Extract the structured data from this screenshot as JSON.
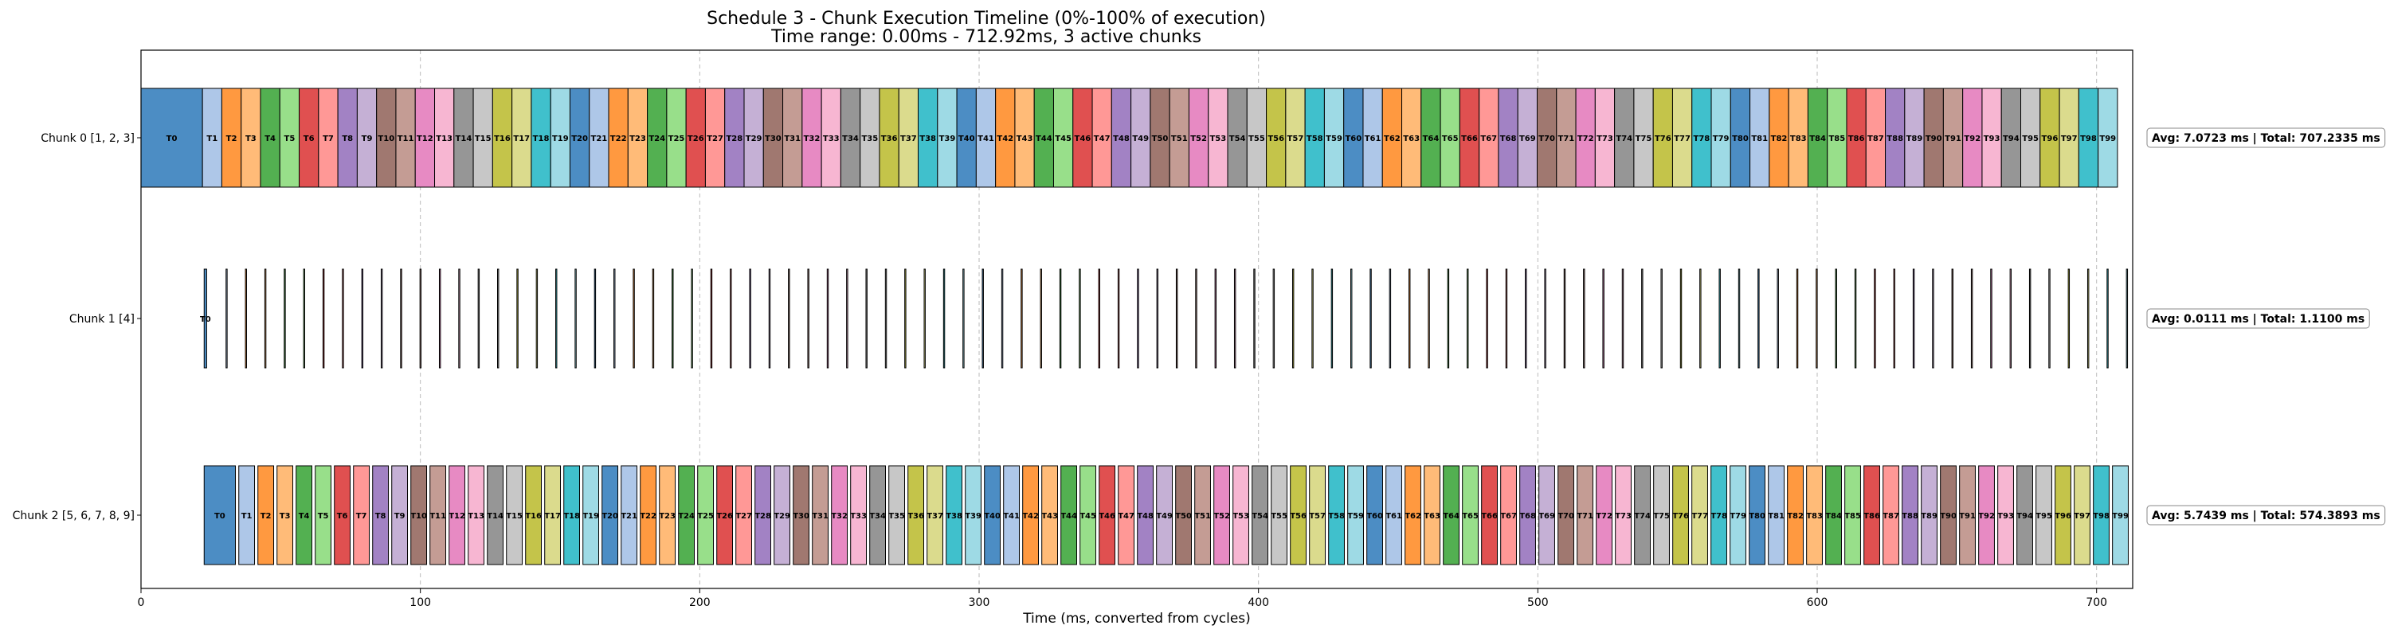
{
  "chart_data": {
    "type": "gantt",
    "title": "Schedule 3 - Chunk Execution Timeline (0%-100% of execution)",
    "subtitle": "Time range: 0.00ms - 712.92ms, 3 active chunks",
    "xlabel": "Time (ms, converted from cycles)",
    "ylabel": "",
    "xlim": [
      0,
      712.92
    ],
    "xticks": [
      0,
      100,
      200,
      300,
      400,
      500,
      600,
      700
    ],
    "grid": "x-dashed",
    "palette": [
      "#4c8dc4",
      "#aec7e8",
      "#ff9940",
      "#ffbb78",
      "#53b051",
      "#98df8a",
      "#e05050",
      "#ff9896",
      "#a282c4",
      "#c5b0d5",
      "#a07870",
      "#c49c94",
      "#e78ac3",
      "#f7b6d2",
      "#969696",
      "#c7c7c7",
      "#c4c44a",
      "#dbdb8d",
      "#40c0cc",
      "#9edae5"
    ],
    "chunks": [
      {
        "label": "Chunk 0 [1, 2, 3]",
        "start": 0.0,
        "first_duration": 22.0,
        "task_duration": 6.924,
        "task_gap": 0.0,
        "task_count": 100,
        "summary": "Avg: 7.0723 ms | Total: 707.2335 ms"
      },
      {
        "label": "Chunk 1 [4]",
        "start": 22.6,
        "first_duration": 0.9,
        "task_duration": 0.0053,
        "task_gap": 6.936,
        "task_count": 100,
        "summary": "Avg: 0.0111 ms | Total: 1.1100 ms"
      },
      {
        "label": "Chunk 2 [5, 6, 7, 8, 9]",
        "start": 22.6,
        "first_duration": 11.2,
        "task_duration": 5.6438,
        "task_gap": 1.2,
        "task_count": 100,
        "summary": "Avg: 5.7439 ms | Total: 574.3893 ms"
      }
    ]
  }
}
